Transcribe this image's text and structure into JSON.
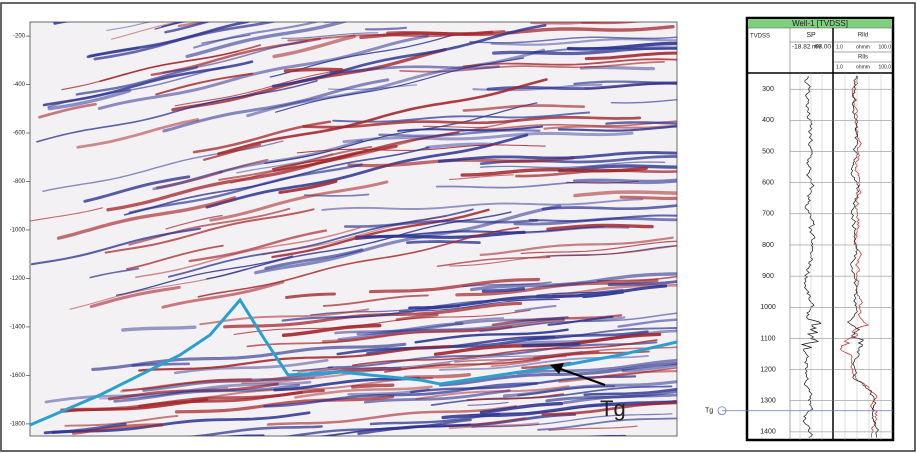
{
  "seismic": {
    "ylim": [
      -142,
      -1850
    ],
    "yticks": [
      -200,
      -400,
      -600,
      -800,
      -1000,
      -1200,
      -1400,
      -1600,
      -1800
    ],
    "horizon_label": "Tg"
  },
  "well": {
    "title": "Well-1 [TVDSS]",
    "depth_header": "TVDSS",
    "sp_header": "SP",
    "sp_min": "-18.82",
    "sp_unit": "mV",
    "sp_max": "68.00",
    "res1_header": "Rlld",
    "res1_scale": [
      "1.0",
      "ohmm",
      "100.0"
    ],
    "res2_header": "Rlls",
    "res2_scale": [
      "1.0",
      "ohmm",
      "100.0"
    ],
    "depth_lim": [
      248,
      1426
    ],
    "depth_ticks": [
      300,
      400,
      500,
      600,
      700,
      800,
      900,
      1000,
      1100,
      1200,
      1300,
      1400
    ],
    "marker": {
      "label": "Tg",
      "depth": 1332
    }
  }
}
